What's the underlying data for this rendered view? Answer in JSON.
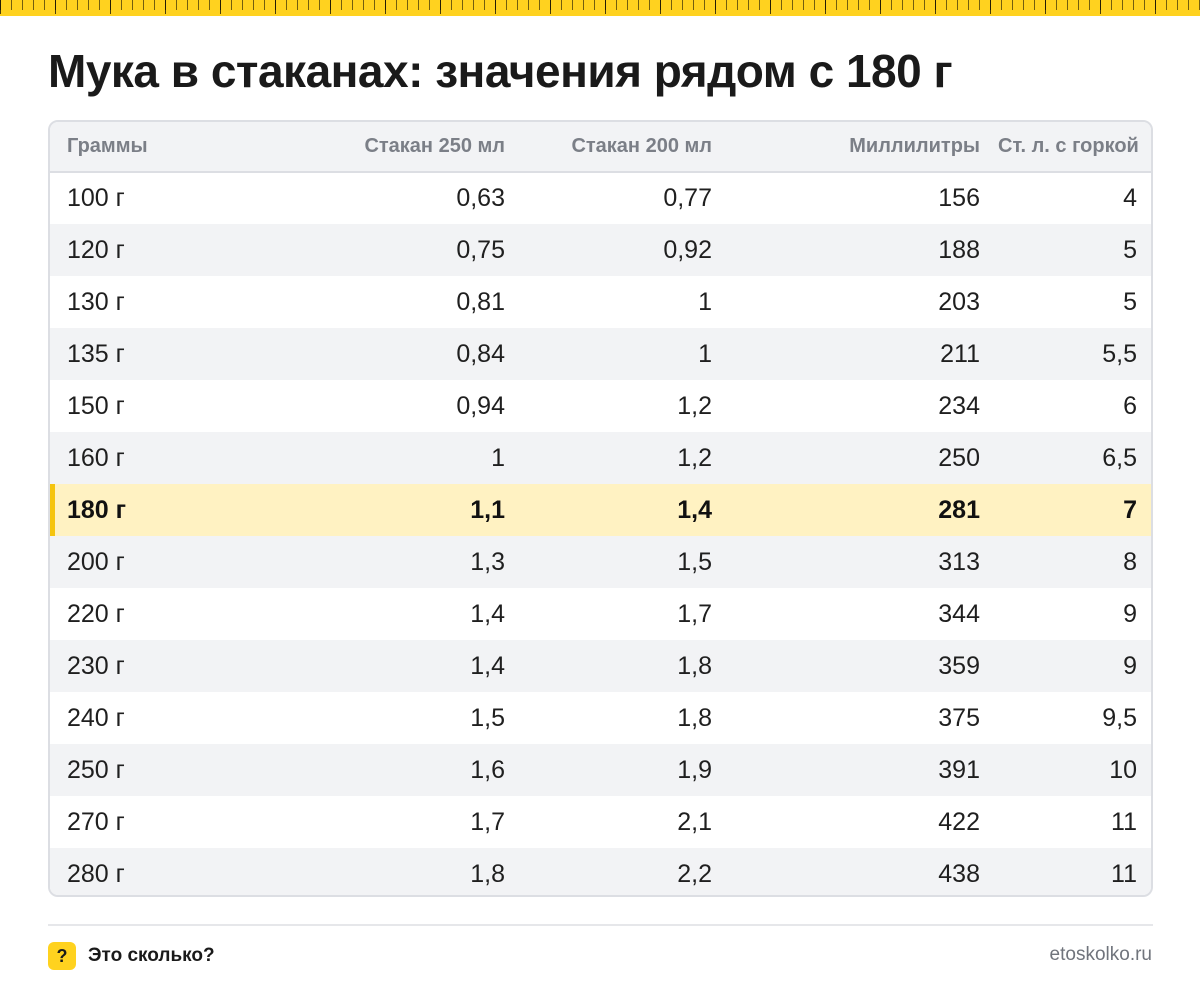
{
  "title": "Мука в стаканах: значения рядом с 180 г",
  "table": {
    "headers": [
      "Граммы",
      "Стакан 250 мл",
      "Стакан 200 мл",
      "Миллилитры",
      "Ст. л. с горкой"
    ],
    "rows": [
      [
        "100 г",
        "0,63",
        "0,77",
        "156",
        "4"
      ],
      [
        "120 г",
        "0,75",
        "0,92",
        "188",
        "5"
      ],
      [
        "130 г",
        "0,81",
        "1",
        "203",
        "5"
      ],
      [
        "135 г",
        "0,84",
        "1",
        "211",
        "5,5"
      ],
      [
        "150 г",
        "0,94",
        "1,2",
        "234",
        "6"
      ],
      [
        "160 г",
        "1",
        "1,2",
        "250",
        "6,5"
      ],
      [
        "180 г",
        "1,1",
        "1,4",
        "281",
        "7"
      ],
      [
        "200 г",
        "1,3",
        "1,5",
        "313",
        "8"
      ],
      [
        "220 г",
        "1,4",
        "1,7",
        "344",
        "9"
      ],
      [
        "230 г",
        "1,4",
        "1,8",
        "359",
        "9"
      ],
      [
        "240 г",
        "1,5",
        "1,8",
        "375",
        "9,5"
      ],
      [
        "250 г",
        "1,6",
        "1,9",
        "391",
        "10"
      ],
      [
        "270 г",
        "1,7",
        "2,1",
        "422",
        "11"
      ],
      [
        "280 г",
        "1,8",
        "2,2",
        "438",
        "11"
      ]
    ],
    "highlighted_row": 6,
    "highlight_color": "#fff2c2",
    "highlight_accent": "#f5c40e"
  },
  "footer": {
    "badge_glyph": "?",
    "brand": "Это сколько?",
    "site": "etoskolko.ru"
  },
  "colors": {
    "accent_yellow": "#ffd21f",
    "header_text": "#7b7f87",
    "zebra": "#f2f3f5"
  }
}
